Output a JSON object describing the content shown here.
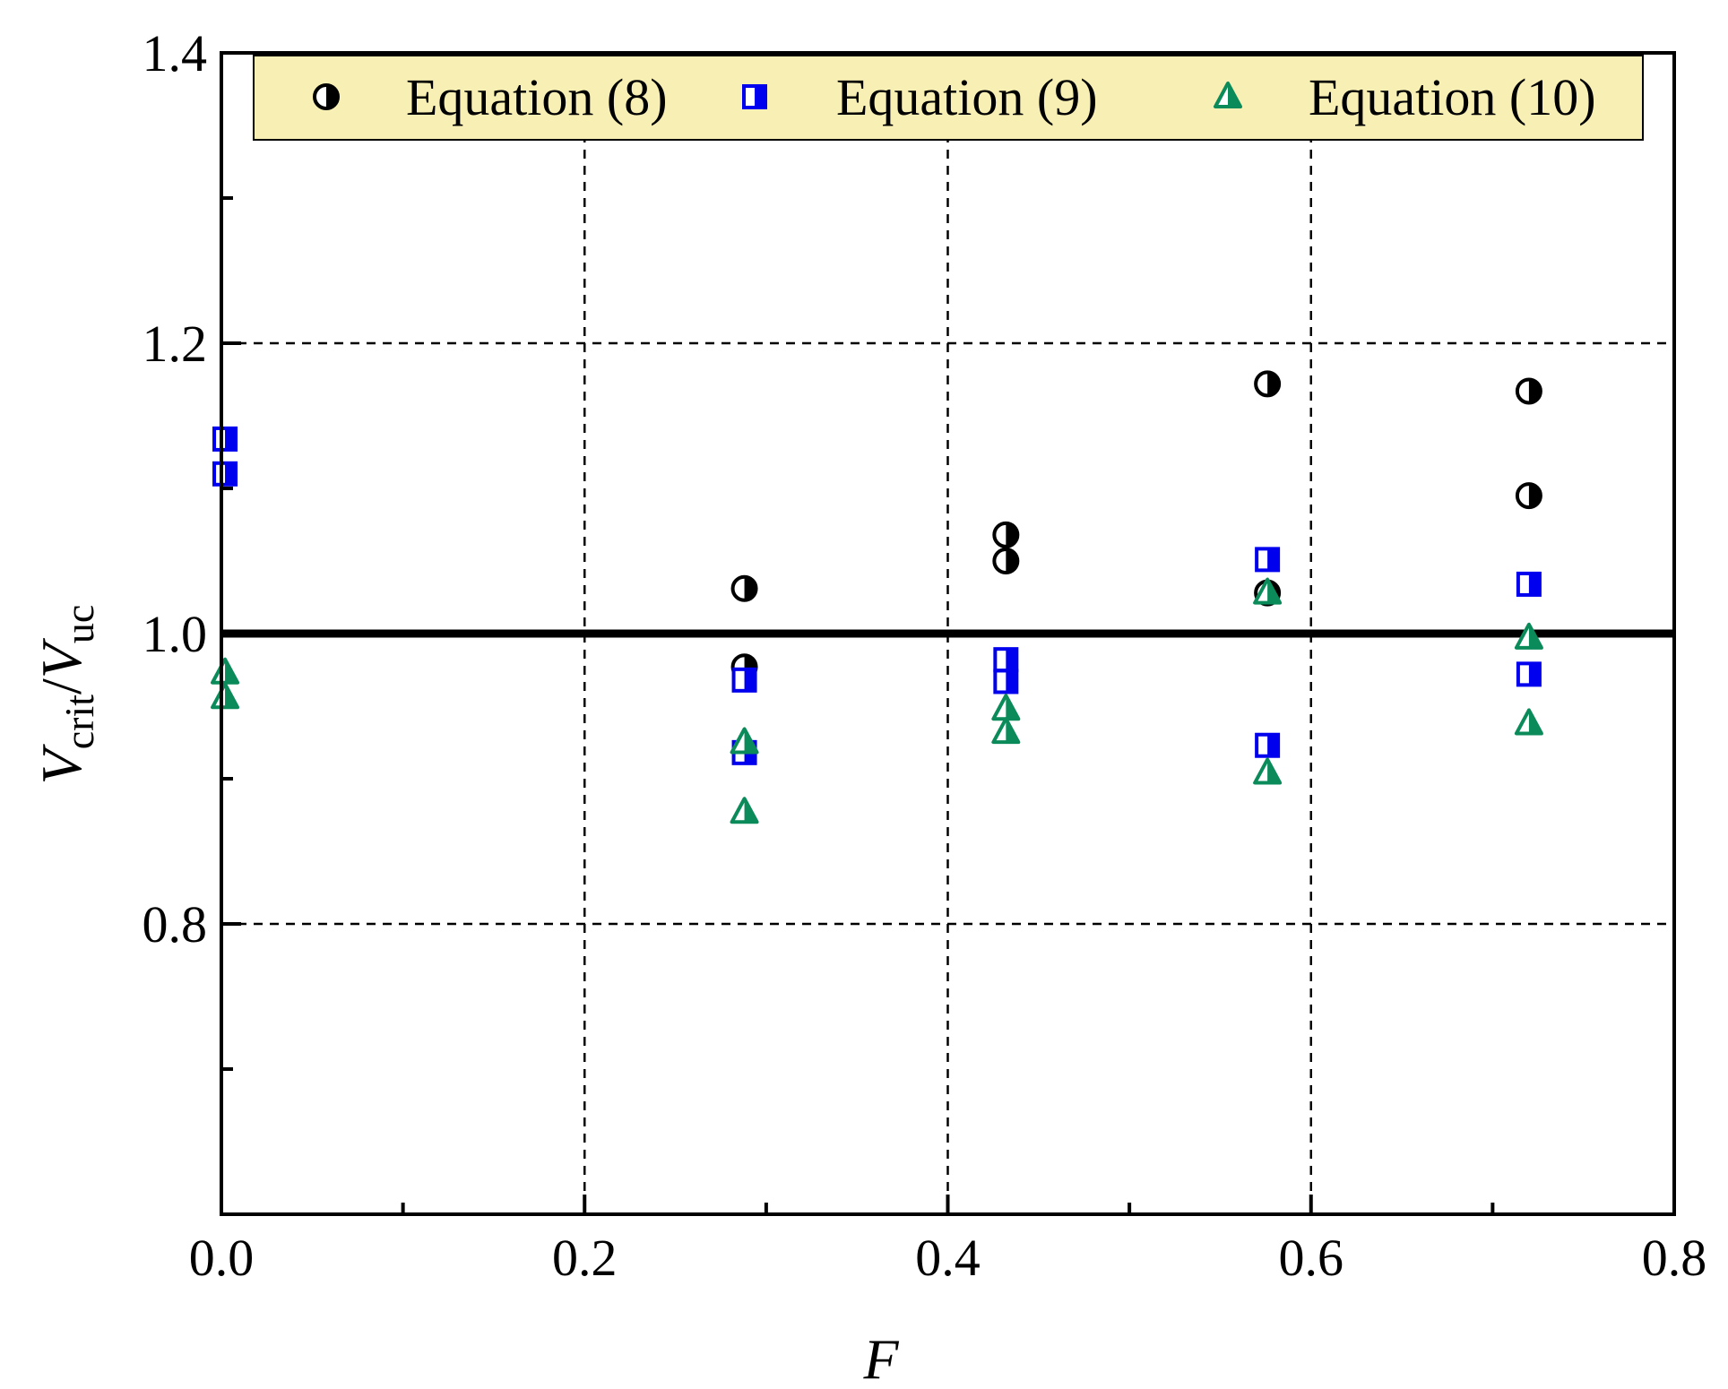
{
  "chart_data": {
    "type": "scatter",
    "title": "",
    "xlabel": "F",
    "ylabel": {
      "v1": "V",
      "sub1": "crit",
      "slash": "/",
      "v2": "V",
      "sub2": "uc"
    },
    "xlim": [
      0.0,
      0.8
    ],
    "ylim": [
      0.6,
      1.4
    ],
    "xticks": [
      "0.0",
      "0.2",
      "0.4",
      "0.6",
      "0.8"
    ],
    "yticks": [
      "0.8",
      "1.0",
      "1.2",
      "1.4"
    ],
    "grid": "dashed at major ticks",
    "reference_line_y": 1.0,
    "legend_position": "top",
    "legend_background": "#f7efb4",
    "series": [
      {
        "name": "Equation (8)",
        "marker": "half-filled-circle",
        "color": "#000000",
        "points": [
          {
            "x": 0.288,
            "y": 1.031
          },
          {
            "x": 0.288,
            "y": 0.977
          },
          {
            "x": 0.432,
            "y": 1.068
          },
          {
            "x": 0.432,
            "y": 1.05
          },
          {
            "x": 0.576,
            "y": 1.172
          },
          {
            "x": 0.576,
            "y": 1.028
          },
          {
            "x": 0.72,
            "y": 1.167
          },
          {
            "x": 0.72,
            "y": 1.095
          }
        ]
      },
      {
        "name": "Equation (9)",
        "marker": "half-filled-square",
        "color": "#0000ee",
        "points": [
          {
            "x": 0.002,
            "y": 1.134
          },
          {
            "x": 0.002,
            "y": 1.11
          },
          {
            "x": 0.288,
            "y": 0.968
          },
          {
            "x": 0.288,
            "y": 0.918
          },
          {
            "x": 0.432,
            "y": 0.982
          },
          {
            "x": 0.432,
            "y": 0.967
          },
          {
            "x": 0.576,
            "y": 1.051
          },
          {
            "x": 0.576,
            "y": 0.923
          },
          {
            "x": 0.72,
            "y": 1.034
          },
          {
            "x": 0.72,
            "y": 0.972
          }
        ]
      },
      {
        "name": "Equation (10)",
        "marker": "half-filled-triangle",
        "color": "#0b8a5a",
        "points": [
          {
            "x": 0.002,
            "y": 0.973
          },
          {
            "x": 0.002,
            "y": 0.956
          },
          {
            "x": 0.288,
            "y": 0.925
          },
          {
            "x": 0.288,
            "y": 0.877
          },
          {
            "x": 0.432,
            "y": 0.948
          },
          {
            "x": 0.432,
            "y": 0.932
          },
          {
            "x": 0.576,
            "y": 1.028
          },
          {
            "x": 0.576,
            "y": 0.904
          },
          {
            "x": 0.72,
            "y": 0.997
          },
          {
            "x": 0.72,
            "y": 0.938
          }
        ]
      }
    ]
  }
}
